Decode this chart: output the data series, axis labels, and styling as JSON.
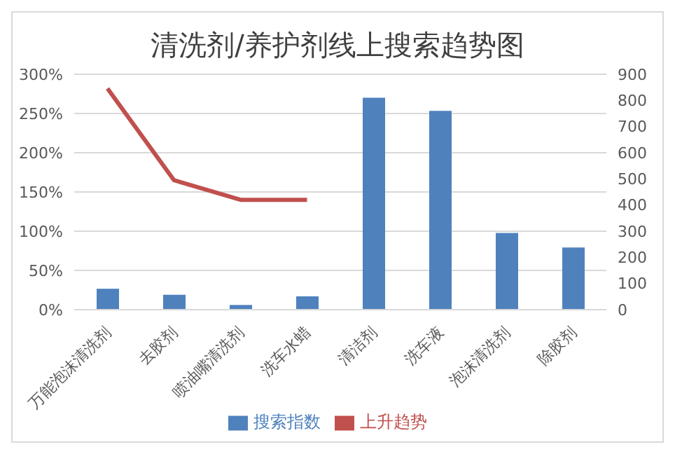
{
  "chart_data": {
    "type": "bar",
    "title": "清洗剂/养护剂线上搜索趋势图",
    "categories": [
      "万能泡沫清洗剂",
      "去胶剂",
      "喷油嘴清洗剂",
      "洗车水蜡",
      "清洁剂",
      "洗车液",
      "泡沫清洗剂",
      "除胶剂"
    ],
    "series": [
      {
        "name": "搜索指数",
        "axis": "y2",
        "color": "#4f81bd",
        "values": [
          80,
          57,
          18,
          51,
          810,
          760,
          293,
          238
        ]
      },
      {
        "name": "上升趋势",
        "type": "line",
        "color": "#c0504d",
        "values": [
          282,
          165,
          140,
          140,
          null,
          null,
          null,
          null
        ]
      }
    ],
    "ylim": [
      0,
      300
    ],
    "yticks": [
      {
        "value": 0,
        "label": "0%"
      },
      {
        "value": 50,
        "label": "50%"
      },
      {
        "value": 100,
        "label": "100%"
      },
      {
        "value": 150,
        "label": "150%"
      },
      {
        "value": 200,
        "label": "200%"
      },
      {
        "value": 250,
        "label": "250%"
      },
      {
        "value": 300,
        "label": "300%"
      }
    ],
    "y2lim": [
      0,
      900
    ],
    "y2ticks": [
      0,
      100,
      200,
      300,
      400,
      500,
      600,
      700,
      800,
      900
    ],
    "grid": "y",
    "legend": "bottom",
    "marker": "none",
    "line_style": "solid"
  }
}
